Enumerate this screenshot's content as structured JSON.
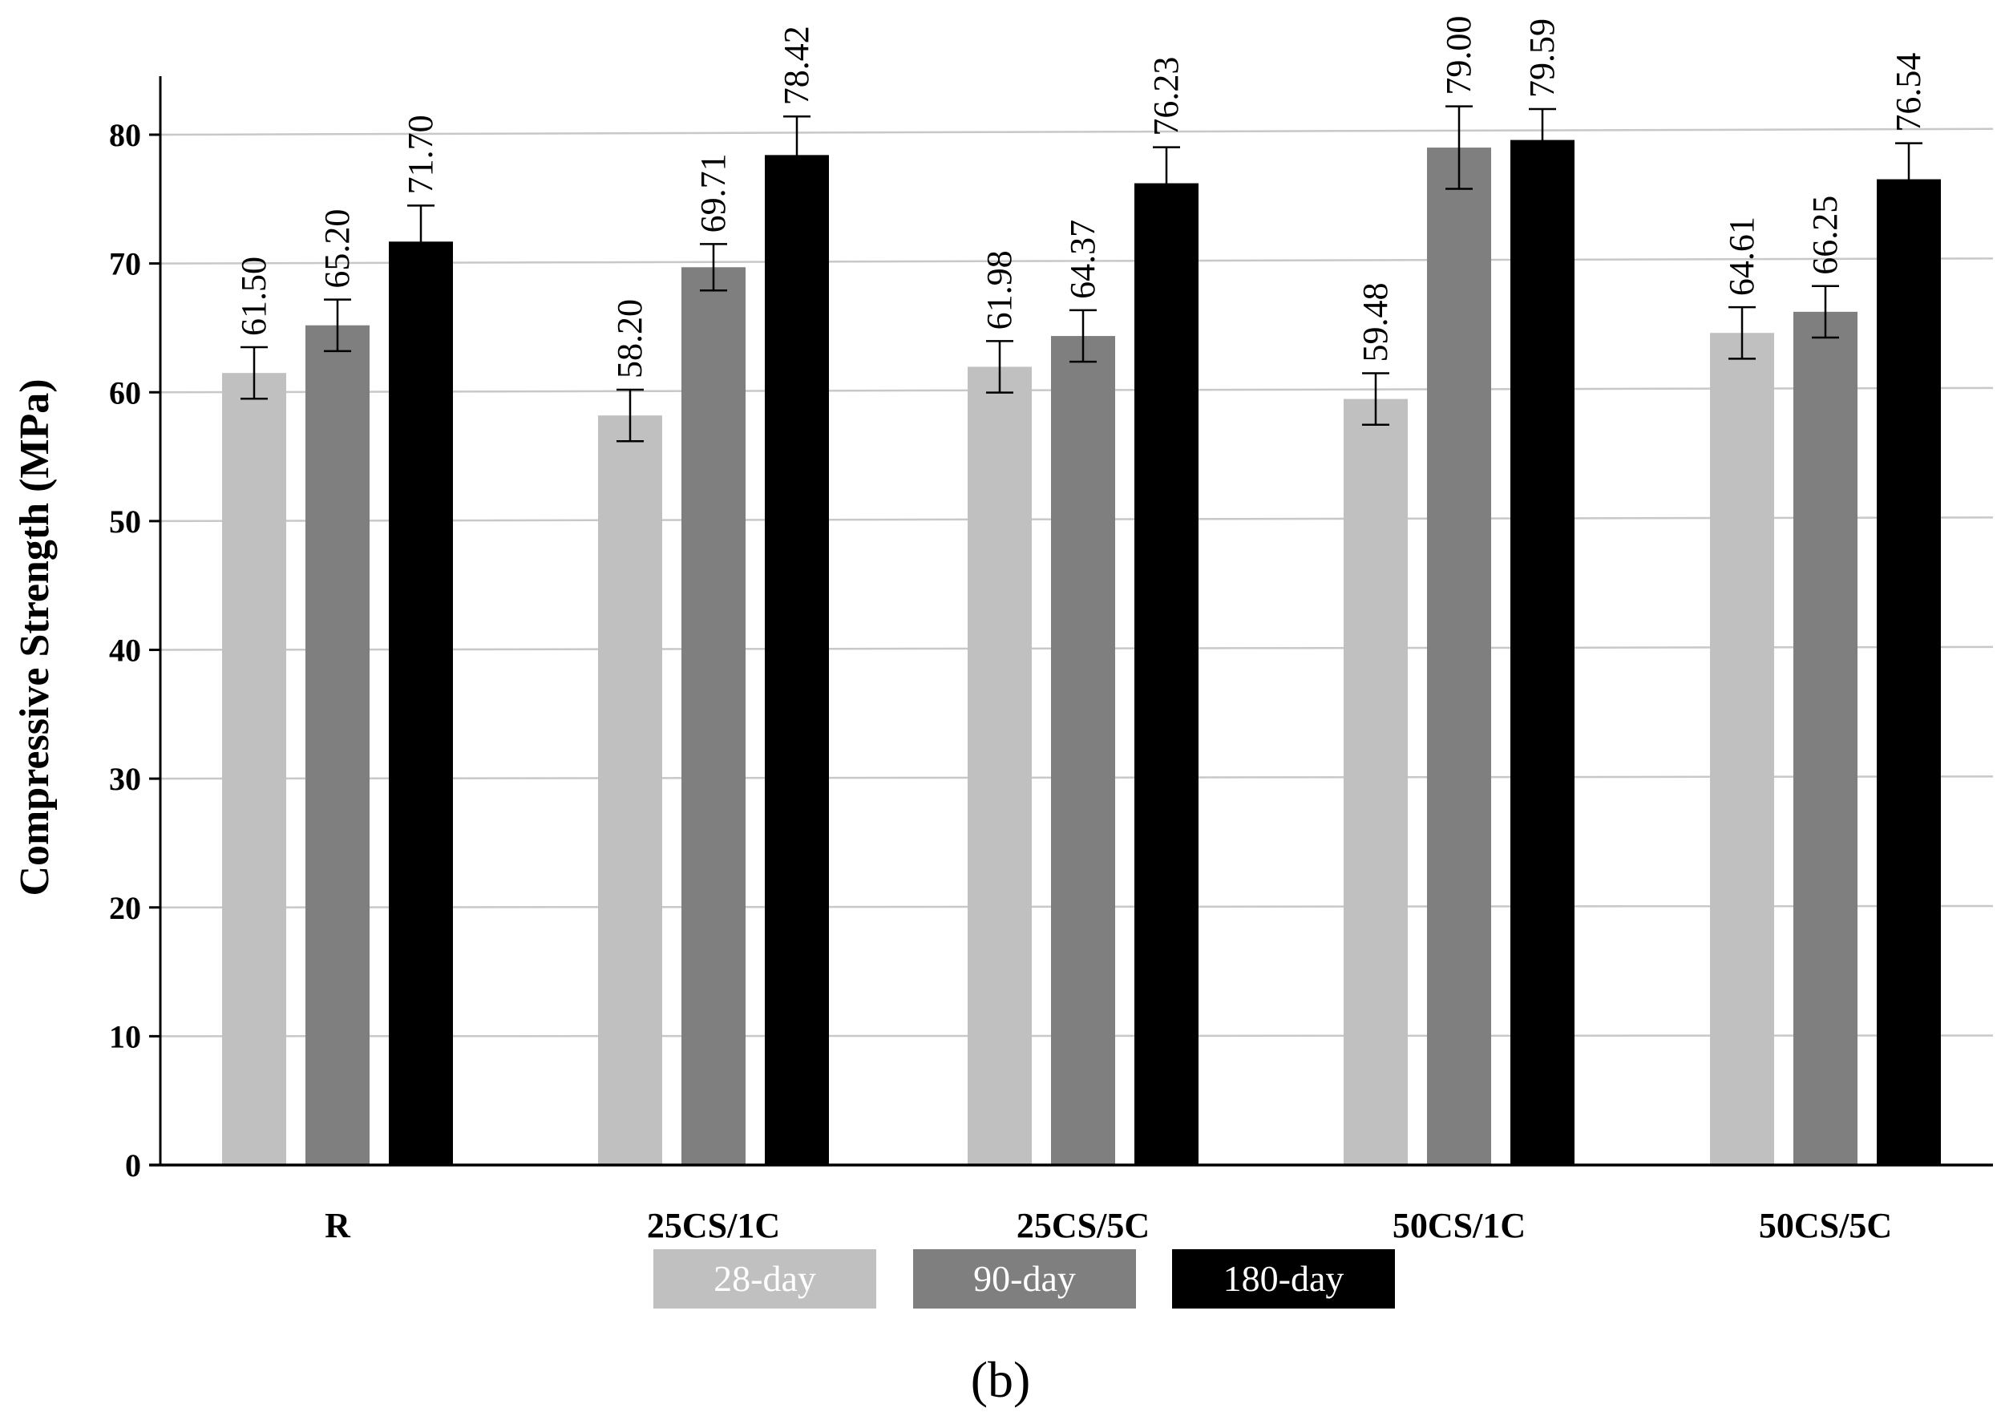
{
  "chart_data": {
    "type": "bar",
    "ylabel": "Compressive Strength (MPa)",
    "xlabel": "",
    "ylim": [
      0,
      85
    ],
    "yticks": [
      0,
      10,
      20,
      30,
      40,
      50,
      60,
      70,
      80
    ],
    "grid": true,
    "legend_position": "bottom",
    "categories": [
      "R",
      "25CS/1C",
      "25CS/5C",
      "50CS/1C",
      "50CS/5C"
    ],
    "series": [
      {
        "name": "28-day",
        "color": "#c0c0c0",
        "values": [
          61.5,
          58.2,
          61.98,
          59.48,
          64.61
        ],
        "labels": [
          "61.50",
          "58.20",
          "61.98",
          "59.48",
          "64.61"
        ],
        "errors": [
          2.0,
          2.0,
          2.0,
          2.0,
          2.0
        ]
      },
      {
        "name": "90-day",
        "color": "#7f7f7f",
        "values": [
          65.2,
          69.71,
          64.37,
          79.0,
          66.25
        ],
        "labels": [
          "65.20",
          "69.71",
          "64.37",
          "79.00",
          "66.25"
        ],
        "errors": [
          2.0,
          1.8,
          2.0,
          3.2,
          2.0
        ]
      },
      {
        "name": "180-day",
        "color": "#000000",
        "values": [
          71.7,
          78.42,
          76.23,
          79.59,
          76.54
        ],
        "labels": [
          "71.70",
          "78.42",
          "76.23",
          "79.59",
          "76.54"
        ],
        "errors": [
          2.8,
          3.0,
          2.8,
          2.4,
          2.8
        ]
      }
    ]
  },
  "caption": "(b)"
}
